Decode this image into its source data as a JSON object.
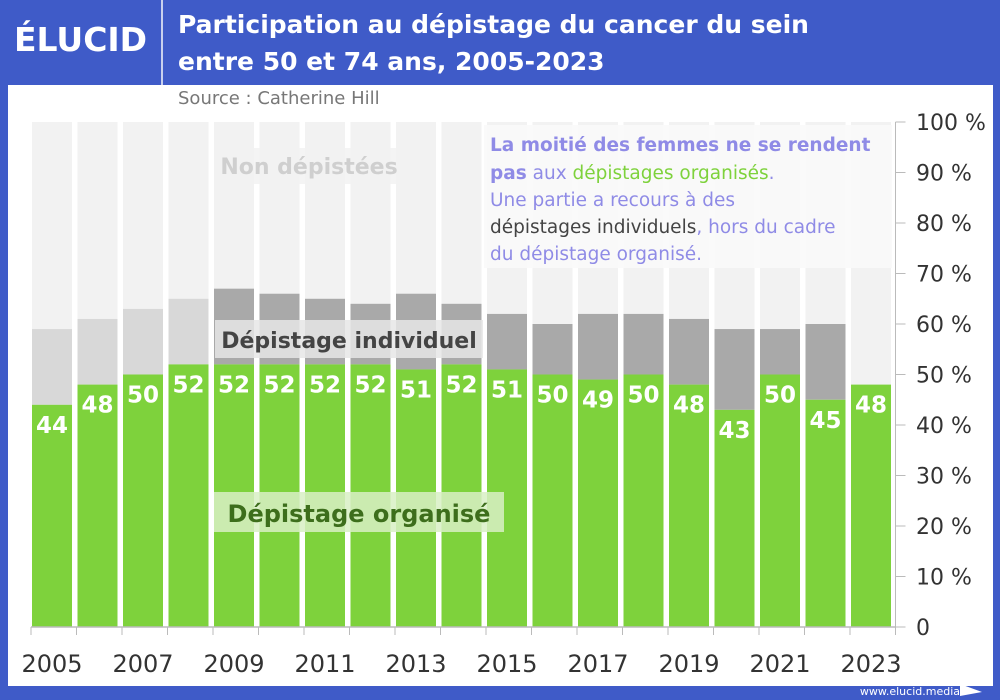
{
  "header": {
    "logo": "ÉLUCID",
    "title_line1": "Participation au dépistage du cancer du sein",
    "title_line2": "entre 50 et 74 ans, 2005-2023",
    "source": "Source : Catherine Hill"
  },
  "footer": {
    "url": "www.elucid.media"
  },
  "chart_data": {
    "type": "bar",
    "stacked": true,
    "categories": [
      "2005",
      "2006",
      "2007",
      "2008",
      "2009",
      "2010",
      "2011",
      "2012",
      "2013",
      "2014",
      "2015",
      "2016",
      "2017",
      "2018",
      "2019",
      "2020",
      "2021",
      "2022",
      "2023"
    ],
    "series": [
      {
        "name": "Dépistage organisé",
        "color": "#7ed23c",
        "values": [
          44,
          48,
          50,
          52,
          52,
          52,
          52,
          52,
          51,
          52,
          51,
          50,
          49,
          50,
          48,
          43,
          50,
          45,
          48
        ]
      },
      {
        "name": "Dépistage individuel",
        "color": "#a9a9a9",
        "color_early": "#d8d8d8",
        "values": [
          15,
          13,
          13,
          13,
          15,
          14,
          13,
          12,
          15,
          12,
          11,
          10,
          13,
          12,
          13,
          16,
          9,
          15,
          0
        ]
      },
      {
        "name": "Non dépistées",
        "color": "#f2f2f2"
      }
    ],
    "x_tick_labels": [
      "2005",
      "2007",
      "2009",
      "2011",
      "2013",
      "2015",
      "2017",
      "2019",
      "2021",
      "2023"
    ],
    "y_tick_labels": [
      "0",
      "10 %",
      "20 %",
      "30 %",
      "40 %",
      "50 %",
      "60 %",
      "70 %",
      "80 %",
      "90 %",
      "100 %"
    ],
    "ylim": [
      0,
      100
    ],
    "y_axis_side": "right",
    "grid": false,
    "annotation": {
      "line1": "La moitié des femmes ne se rendent",
      "line2a": "pas",
      "line2b": " aux ",
      "line2c": "dépistages organisés",
      "line2d": ".",
      "line3": "Une partie a recours à des",
      "line4a": "dépistages individuels",
      "line4b": ", hors du cadre",
      "line5": "du dépistage organisé.",
      "colors": {
        "purple": "#8f8be6",
        "green": "#7ed23c",
        "dark": "#444444"
      }
    }
  }
}
